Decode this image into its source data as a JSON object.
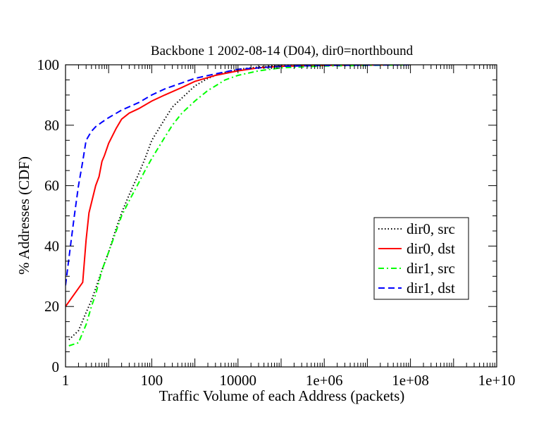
{
  "chart_data": {
    "type": "line",
    "title": "Backbone 1 2002-08-14 (D04), dir0=northbound",
    "xlabel": "Traffic Volume of each Address (packets)",
    "ylabel": "% Addresses (CDF)",
    "x_scale": "log10",
    "xlim": [
      1,
      10000000000
    ],
    "ylim": [
      0,
      100
    ],
    "x_ticks": [
      {
        "value": 1,
        "label": "1"
      },
      {
        "value": 100,
        "label": "100"
      },
      {
        "value": 10000,
        "label": "10000"
      },
      {
        "value": 1000000,
        "label": "1e+06"
      },
      {
        "value": 100000000,
        "label": "1e+08"
      },
      {
        "value": 10000000000,
        "label": "1e+10"
      }
    ],
    "y_ticks": [
      {
        "value": 0,
        "label": "0"
      },
      {
        "value": 20,
        "label": "20"
      },
      {
        "value": 40,
        "label": "40"
      },
      {
        "value": 60,
        "label": "60"
      },
      {
        "value": 80,
        "label": "80"
      },
      {
        "value": 100,
        "label": "100"
      }
    ],
    "grid": false,
    "legend_position": "right-middle",
    "series": [
      {
        "name": "dir0, src",
        "color": "#000000",
        "dash": "dotted",
        "points": [
          [
            1.2,
            9
          ],
          [
            2,
            12
          ],
          [
            3,
            18
          ],
          [
            4,
            22
          ],
          [
            5,
            26
          ],
          [
            7,
            32
          ],
          [
            10,
            38
          ],
          [
            15,
            46
          ],
          [
            20,
            51
          ],
          [
            30,
            57
          ],
          [
            50,
            64
          ],
          [
            70,
            69
          ],
          [
            100,
            75
          ],
          [
            200,
            82
          ],
          [
            300,
            86
          ],
          [
            500,
            89
          ],
          [
            1000,
            93
          ],
          [
            2000,
            95.5
          ],
          [
            3000,
            96.5
          ],
          [
            5000,
            97.5
          ],
          [
            10000,
            98.5
          ],
          [
            30000,
            99.3
          ],
          [
            100000,
            99.7
          ],
          [
            1000000,
            99.9
          ],
          [
            100000000,
            100
          ]
        ]
      },
      {
        "name": "dir0, dst",
        "color": "#ff0000",
        "dash": "solid",
        "points": [
          [
            1,
            20
          ],
          [
            2.5,
            28
          ],
          [
            3,
            42
          ],
          [
            3.5,
            51
          ],
          [
            5,
            60
          ],
          [
            6,
            63
          ],
          [
            7,
            68
          ],
          [
            8,
            70
          ],
          [
            10,
            74
          ],
          [
            15,
            79
          ],
          [
            20,
            82
          ],
          [
            30,
            84
          ],
          [
            50,
            85.5
          ],
          [
            100,
            88
          ],
          [
            200,
            90
          ],
          [
            500,
            92.5
          ],
          [
            1000,
            94.5
          ],
          [
            3000,
            96.5
          ],
          [
            10000,
            98
          ],
          [
            30000,
            99
          ],
          [
            100000,
            99.5
          ],
          [
            1000000,
            99.8
          ],
          [
            100000000,
            100
          ]
        ]
      },
      {
        "name": "dir1, src",
        "color": "#00ff00",
        "dash": "dashdot",
        "points": [
          [
            1.2,
            7
          ],
          [
            2,
            8
          ],
          [
            3,
            14
          ],
          [
            4,
            20
          ],
          [
            5,
            24
          ],
          [
            7,
            32
          ],
          [
            10,
            38
          ],
          [
            15,
            45
          ],
          [
            20,
            50
          ],
          [
            30,
            55
          ],
          [
            50,
            61
          ],
          [
            70,
            65
          ],
          [
            100,
            69
          ],
          [
            200,
            76
          ],
          [
            300,
            80
          ],
          [
            500,
            84
          ],
          [
            1000,
            88
          ],
          [
            2000,
            91.5
          ],
          [
            3000,
            93
          ],
          [
            5000,
            95
          ],
          [
            10000,
            96.5
          ],
          [
            30000,
            98
          ],
          [
            100000,
            99
          ],
          [
            1000000,
            99.6
          ],
          [
            10000000,
            99.8
          ],
          [
            100000000,
            100
          ]
        ]
      },
      {
        "name": "dir1, dst",
        "color": "#0000ff",
        "dash": "dashed",
        "points": [
          [
            1,
            27
          ],
          [
            1.3,
            40
          ],
          [
            1.6,
            50
          ],
          [
            2,
            60
          ],
          [
            2.5,
            68
          ],
          [
            3,
            75
          ],
          [
            4,
            78
          ],
          [
            5,
            79.5
          ],
          [
            7,
            81
          ],
          [
            10,
            82.5
          ],
          [
            20,
            85
          ],
          [
            50,
            87.5
          ],
          [
            100,
            90
          ],
          [
            200,
            92
          ],
          [
            500,
            94
          ],
          [
            1000,
            95.5
          ],
          [
            3000,
            97
          ],
          [
            10000,
            98.5
          ],
          [
            100000,
            99.5
          ],
          [
            1000000,
            99.8
          ],
          [
            100000000,
            100
          ]
        ]
      }
    ]
  }
}
